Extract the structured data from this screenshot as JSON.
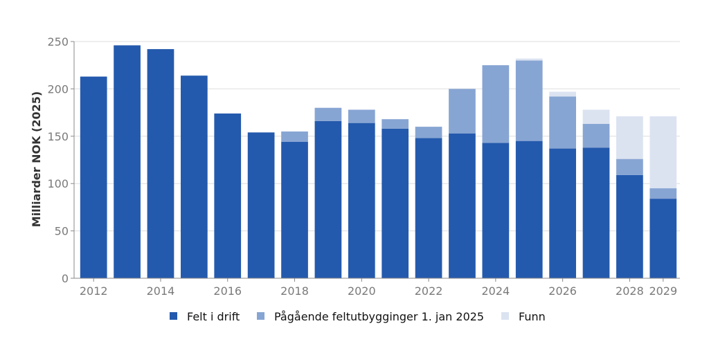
{
  "chart_data": {
    "type": "bar",
    "stacked": true,
    "categories": [
      "2012",
      "2013",
      "2014",
      "2015",
      "2016",
      "2017",
      "2018",
      "2019",
      "2020",
      "2021",
      "2022",
      "2023",
      "2024",
      "2025",
      "2026",
      "2027",
      "2028",
      "2029"
    ],
    "x_tick_labels": [
      "2012",
      "2014",
      "2016",
      "2018",
      "2020",
      "2022",
      "2024",
      "2026",
      "2028",
      "2029"
    ],
    "series": [
      {
        "name": "Felt i drift",
        "color": "#245aad",
        "values": [
          213,
          246,
          242,
          214,
          174,
          154,
          144,
          166,
          164,
          158,
          148,
          153,
          143,
          145,
          137,
          138,
          109,
          84
        ]
      },
      {
        "name": "Pågående feltutbygginger 1. jan 2025",
        "color": "#87a5d3",
        "values": [
          0,
          0,
          0,
          0,
          0,
          0,
          11,
          14,
          14,
          10,
          12,
          47,
          82,
          85,
          55,
          25,
          17,
          11
        ]
      },
      {
        "name": "Funn",
        "color": "#dbe3f1",
        "values": [
          0,
          0,
          0,
          0,
          0,
          0,
          0,
          0,
          0,
          0,
          0,
          0,
          0,
          2,
          5,
          15,
          45,
          76
        ]
      }
    ],
    "title": "",
    "xlabel": "",
    "ylabel": "Milliarder NOK (2025)",
    "ylim": [
      0,
      250
    ],
    "yticks": [
      0,
      50,
      100,
      150,
      200,
      250
    ],
    "grid": true,
    "legend_position": "bottom"
  }
}
